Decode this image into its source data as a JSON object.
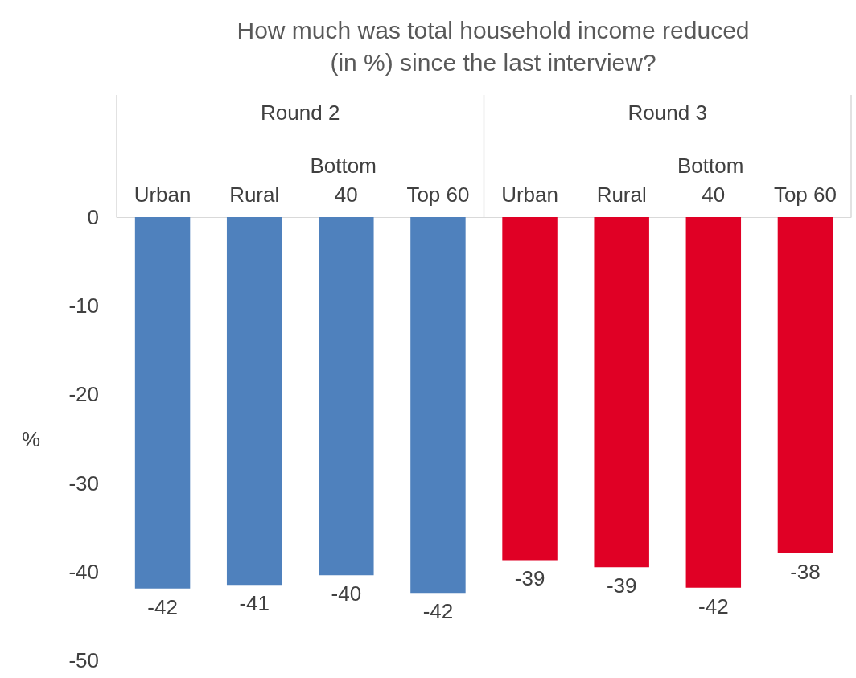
{
  "chart_data": {
    "type": "bar",
    "title": "How much was total household income reduced\n(in %) since the last interview?",
    "ylabel": "%",
    "categories": [
      "Urban",
      "Rural",
      "Bottom 40",
      "Top 60",
      "Urban",
      "Rural",
      "Bottom 40",
      "Top 60"
    ],
    "values": [
      -41.9,
      -41.5,
      -40.4,
      -42.4,
      -38.7,
      -39.5,
      -41.8,
      -37.9
    ],
    "value_labels": [
      "-42",
      "-41",
      "-40",
      "-42",
      "-39",
      "-39",
      "-42",
      "-38"
    ],
    "colors": [
      "#4f81bd",
      "#4f81bd",
      "#4f81bd",
      "#4f81bd",
      "#e00025",
      "#e00025",
      "#e00025",
      "#e00025"
    ],
    "annotations": [
      "Round 2",
      "Round 3"
    ],
    "ylim": [
      -50,
      0
    ],
    "yticks": [
      0,
      -10,
      -20,
      -30,
      -40,
      -50
    ],
    "grid": false
  }
}
